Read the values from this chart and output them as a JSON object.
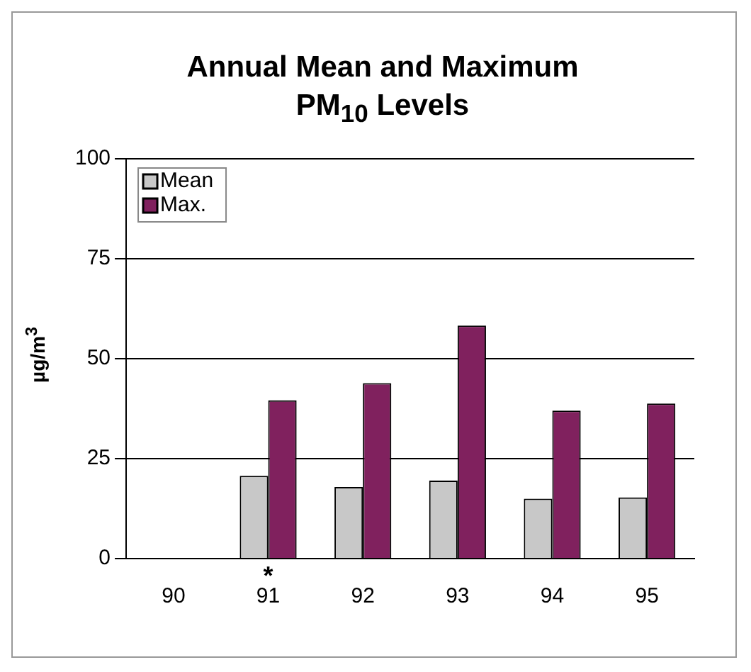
{
  "chart_data": {
    "type": "bar",
    "title": "Annual Mean and Maximum PM$_{10}$ Levels",
    "ylabel": "µg/m$^{3}$",
    "categories": [
      "90",
      "91",
      "92",
      "93",
      "94",
      "95"
    ],
    "series": [
      {
        "name": "Mean",
        "color": "#c8c8c8",
        "values": [
          null,
          20.7,
          17.9,
          19.5,
          15,
          15.3
        ]
      },
      {
        "name": "Max.",
        "color": "#80215e",
        "values": [
          null,
          39.6,
          43.9,
          58.3,
          37,
          38.8
        ]
      }
    ],
    "ylim": [
      0,
      100
    ],
    "yticks": [
      0,
      25,
      50,
      75,
      100
    ],
    "grid": "y",
    "legend": "top left",
    "annotations": [
      {
        "text": "*",
        "x": "91",
        "y": 0
      }
    ]
  }
}
